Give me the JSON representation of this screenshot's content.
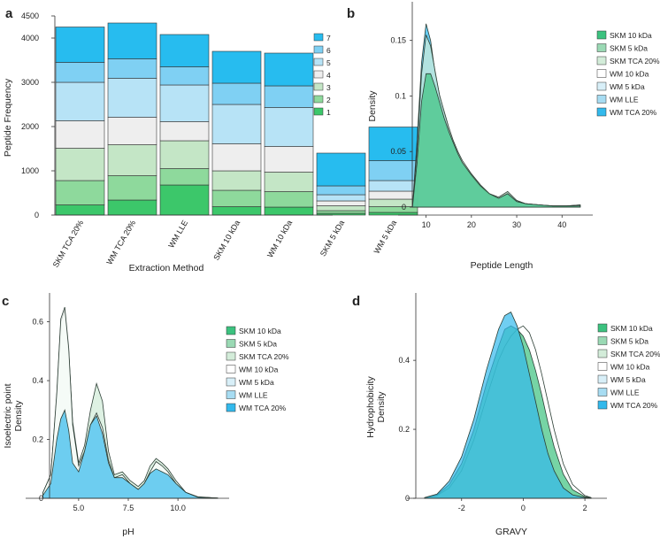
{
  "colors": {
    "level1": "#3cc76a",
    "level2": "#8ed99c",
    "level3": "#c4e6c6",
    "level4": "#eeeeee",
    "level5": "#b7e3f6",
    "level6": "#7fd0f3",
    "level7": "#27bcef",
    "skm10": "#3cc27f",
    "skm5": "#9ad9b4",
    "skmtca": "#d3ecd9",
    "wm10": "#ffffff",
    "wm5": "#d8eff8",
    "wmlle": "#a7dcf2",
    "wmtca": "#33b9ec"
  },
  "chart_data": [
    {
      "panel": "a",
      "type": "bar",
      "stacked": true,
      "xlabel": "Extraction Method",
      "ylabel": "Peptide Frequency",
      "ylim": [
        0,
        4500
      ],
      "yticks": [
        0,
        1000,
        2000,
        3000,
        4000,
        4500
      ],
      "categories": [
        "SKM TCA 20%",
        "WM TCA 20%",
        "WM LLE",
        "SKM 10 kDa",
        "WM 10 kDa",
        "SKM 5 kDa",
        "WM 5 kDa"
      ],
      "series": [
        {
          "name": "1",
          "values": [
            230,
            340,
            680,
            190,
            180,
            40,
            60
          ]
        },
        {
          "name": "2",
          "values": [
            550,
            550,
            370,
            370,
            350,
            60,
            130
          ]
        },
        {
          "name": "3",
          "values": [
            730,
            700,
            630,
            440,
            440,
            110,
            170
          ]
        },
        {
          "name": "4",
          "values": [
            620,
            620,
            430,
            610,
            580,
            110,
            180
          ]
        },
        {
          "name": "5",
          "values": [
            870,
            880,
            830,
            890,
            880,
            140,
            240
          ]
        },
        {
          "name": "6",
          "values": [
            450,
            440,
            410,
            480,
            490,
            200,
            450
          ]
        },
        {
          "name": "7",
          "values": [
            800,
            810,
            730,
            720,
            740,
            740,
            760
          ]
        }
      ],
      "legend": [
        "7",
        "6",
        "5",
        "4",
        "3",
        "2",
        "1"
      ]
    },
    {
      "panel": "b",
      "type": "area",
      "xlabel": "Peptide Length",
      "ylabel": "Density",
      "xlim": [
        5,
        46
      ],
      "ylim": [
        0,
        0.18
      ],
      "xticks": [
        10,
        20,
        30,
        40
      ],
      "yticks": [
        0,
        0.05,
        0.1,
        0.15
      ],
      "ytick_labels": [
        "0",
        "0.05",
        "0.1",
        "0.15"
      ],
      "legend": [
        "SKM 10 kDa",
        "SKM 5 kDa",
        "SKM TCA 20%",
        "WM 10 kDa",
        "WM 5 kDa",
        "WM LLE",
        "WM TCA 20%"
      ],
      "x": [
        7,
        8,
        9,
        10,
        11,
        12,
        13,
        14,
        15,
        16,
        17,
        18,
        20,
        22,
        24,
        26,
        28,
        30,
        32,
        35,
        38,
        41,
        44
      ],
      "series": [
        {
          "name": "WM TCA 20%",
          "values": [
            0,
            0.06,
            0.13,
            0.165,
            0.15,
            0.12,
            0.1,
            0.085,
            0.07,
            0.058,
            0.048,
            0.04,
            0.028,
            0.018,
            0.011,
            0.008,
            0.013,
            0.006,
            0.003,
            0.002,
            0.001,
            0.001,
            0.002
          ]
        },
        {
          "name": "SKM TCA 20%",
          "values": [
            0,
            0.05,
            0.12,
            0.155,
            0.145,
            0.122,
            0.1,
            0.086,
            0.072,
            0.06,
            0.05,
            0.042,
            0.03,
            0.02,
            0.012,
            0.009,
            0.014,
            0.006,
            0.003,
            0.002,
            0.001,
            0.001,
            0.002
          ]
        },
        {
          "name": "SKM 10 kDa",
          "values": [
            0,
            0.04,
            0.095,
            0.12,
            0.12,
            0.108,
            0.094,
            0.08,
            0.068,
            0.058,
            0.048,
            0.04,
            0.029,
            0.019,
            0.012,
            0.008,
            0.012,
            0.005,
            0.003,
            0.002,
            0.001,
            0.001,
            0.001
          ]
        }
      ]
    },
    {
      "panel": "c",
      "type": "area",
      "xlabel": "pH",
      "ylabel": "Isoelectric point Density",
      "ylabel_lines": [
        "Isoelectric point",
        "Density"
      ],
      "xlim": [
        2.6,
        12.4
      ],
      "ylim": [
        0,
        0.68
      ],
      "xticks": [
        5.0,
        7.5,
        10.0
      ],
      "xtick_labels": [
        "5.0",
        "7.5",
        "10.0"
      ],
      "yticks": [
        0,
        0.2,
        0.4,
        0.6
      ],
      "ytick_labels": [
        "0",
        "0.2",
        "0.4",
        "0.6"
      ],
      "legend": [
        "SKM 10 kDa",
        "SKM 5 kDa",
        "SKM TCA 20%",
        "WM 10 kDa",
        "WM 5 kDa",
        "WM LLE",
        "WM TCA 20%"
      ],
      "x": [
        3.2,
        3.6,
        3.9,
        4.1,
        4.3,
        4.5,
        4.7,
        5.0,
        5.3,
        5.6,
        5.9,
        6.2,
        6.5,
        6.8,
        7.2,
        7.6,
        8.0,
        8.3,
        8.6,
        8.9,
        9.2,
        9.5,
        9.9,
        10.4,
        11.0,
        12.0
      ],
      "series": [
        {
          "name": "SKM TCA 20%",
          "values": [
            0.02,
            0.08,
            0.35,
            0.6,
            0.64,
            0.5,
            0.26,
            0.12,
            0.18,
            0.3,
            0.39,
            0.33,
            0.16,
            0.08,
            0.09,
            0.06,
            0.04,
            0.06,
            0.11,
            0.135,
            0.12,
            0.1,
            0.06,
            0.02,
            0.005,
            0.001
          ]
        },
        {
          "name": "WM 10 kDa",
          "values": [
            0.02,
            0.08,
            0.36,
            0.61,
            0.65,
            0.51,
            0.25,
            0.11,
            0.16,
            0.25,
            0.29,
            0.24,
            0.13,
            0.07,
            0.08,
            0.05,
            0.03,
            0.05,
            0.09,
            0.125,
            0.11,
            0.09,
            0.05,
            0.02,
            0.004,
            0.001
          ]
        },
        {
          "name": "WM TCA 20%",
          "values": [
            0.01,
            0.05,
            0.2,
            0.27,
            0.3,
            0.23,
            0.12,
            0.09,
            0.16,
            0.25,
            0.28,
            0.22,
            0.12,
            0.07,
            0.07,
            0.05,
            0.03,
            0.05,
            0.085,
            0.1,
            0.09,
            0.08,
            0.05,
            0.02,
            0.004,
            0.001
          ]
        }
      ]
    },
    {
      "panel": "d",
      "type": "area",
      "xlabel": "GRAVY",
      "ylabel": "Hydrophobicity Density",
      "ylabel_lines": [
        "Hydrophobicity",
        "Density"
      ],
      "xlim": [
        -3.6,
        2.6
      ],
      "ylim": [
        0,
        0.58
      ],
      "xticks": [
        -2,
        0,
        2
      ],
      "xtick_labels": [
        "-2",
        "0",
        "2"
      ],
      "yticks": [
        0,
        0.2,
        0.4
      ],
      "ytick_labels": [
        "0",
        "0.2",
        "0.4"
      ],
      "legend": [
        "SKM 10 kDa",
        "SKM 5 kDa",
        "SKM TCA 20%",
        "WM 10 kDa",
        "WM 5 kDa",
        "WM LLE",
        "WM TCA 20%"
      ],
      "x": [
        -3.2,
        -2.8,
        -2.4,
        -2.0,
        -1.6,
        -1.2,
        -0.8,
        -0.6,
        -0.4,
        -0.2,
        0,
        0.2,
        0.4,
        0.6,
        0.8,
        1.0,
        1.3,
        1.6,
        2.0,
        2.2
      ],
      "series": [
        {
          "name": "WM 10 kDa",
          "values": [
            0.001,
            0.008,
            0.03,
            0.08,
            0.17,
            0.29,
            0.4,
            0.44,
            0.47,
            0.49,
            0.5,
            0.48,
            0.43,
            0.36,
            0.28,
            0.2,
            0.1,
            0.04,
            0.008,
            0.002
          ]
        },
        {
          "name": "SKM 10 kDa",
          "values": [
            0.001,
            0.01,
            0.04,
            0.1,
            0.2,
            0.33,
            0.44,
            0.49,
            0.5,
            0.49,
            0.47,
            0.43,
            0.37,
            0.3,
            0.22,
            0.15,
            0.07,
            0.025,
            0.005,
            0.001
          ]
        },
        {
          "name": "WM TCA 20%",
          "values": [
            0.002,
            0.012,
            0.05,
            0.12,
            0.23,
            0.37,
            0.49,
            0.53,
            0.54,
            0.5,
            0.44,
            0.36,
            0.28,
            0.2,
            0.13,
            0.08,
            0.03,
            0.01,
            0.002,
            0.001
          ]
        }
      ]
    }
  ]
}
